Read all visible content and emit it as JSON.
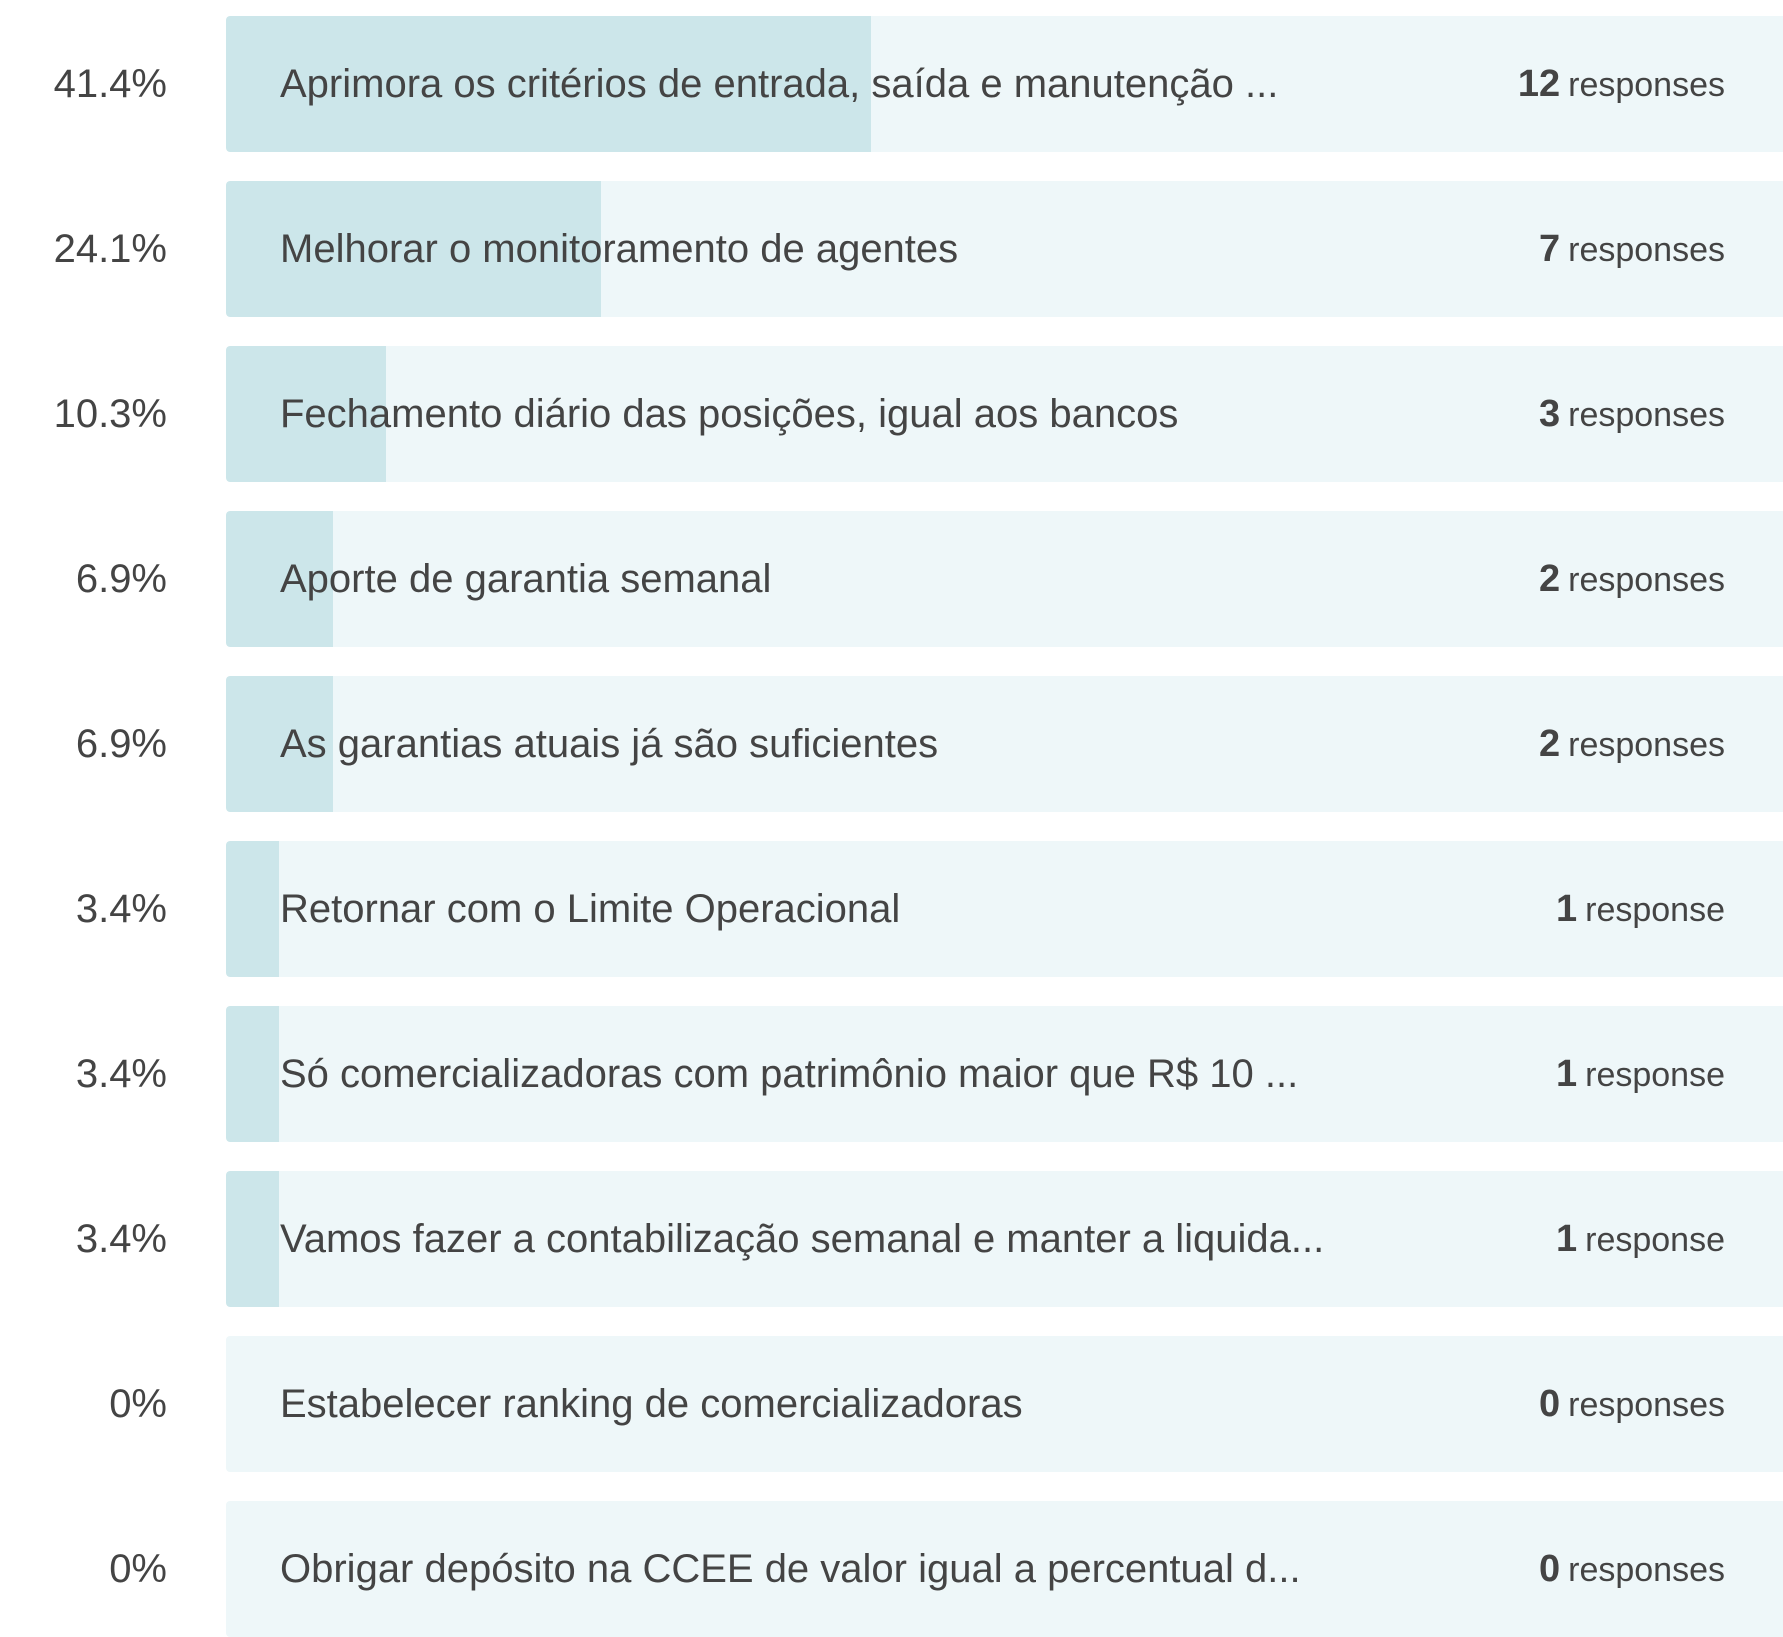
{
  "chart_data": {
    "type": "bar",
    "categories": [
      "Aprimora os critérios de entrada, saída e manutenção ...",
      "Melhorar o monitoramento de agentes",
      "Fechamento diário das posições, igual aos bancos",
      "Aporte de garantia semanal",
      "As garantias atuais já são suficientes",
      "Retornar com o Limite Operacional",
      "Só comercializadoras com patrimônio maior que R$ 10 ...",
      "Vamos fazer a contabilização semanal e manter a liquida...",
      "Estabelecer ranking de comercializadoras",
      "Obrigar depósito na CCEE de valor igual a percentual d..."
    ],
    "values": [
      41.4,
      24.1,
      10.3,
      6.9,
      6.9,
      3.4,
      3.4,
      3.4,
      0,
      0
    ],
    "value_labels": [
      "41.4%",
      "24.1%",
      "10.3%",
      "6.9%",
      "6.9%",
      "3.4%",
      "3.4%",
      "3.4%",
      "0%",
      "0%"
    ],
    "counts": [
      12,
      7,
      3,
      2,
      2,
      1,
      1,
      1,
      0,
      0
    ],
    "count_units": [
      "responses",
      "responses",
      "responses",
      "responses",
      "responses",
      "response",
      "response",
      "response",
      "responses",
      "responses"
    ],
    "color": "#cce6ea",
    "track_color": "#eef7f9"
  }
}
